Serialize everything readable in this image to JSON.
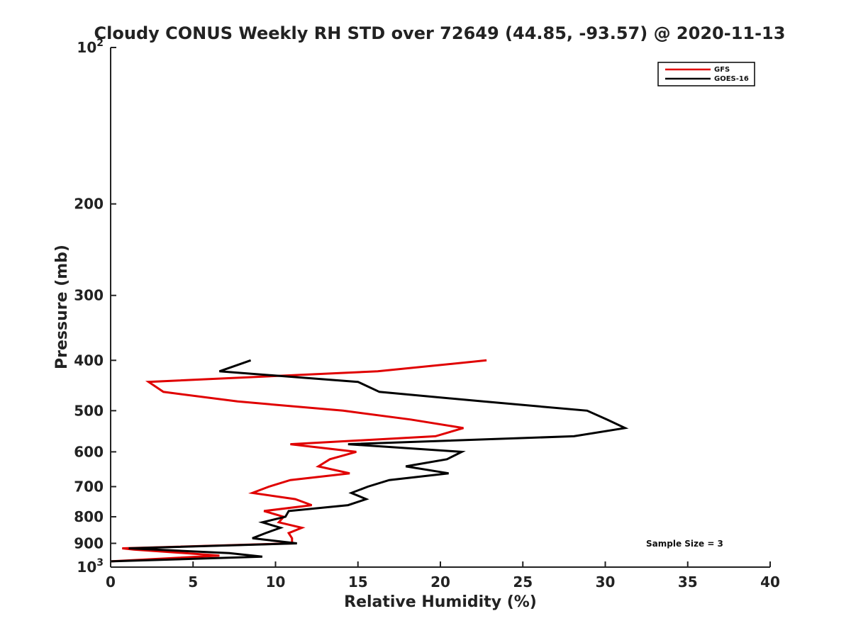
{
  "chart_data": {
    "type": "line",
    "title": "Cloudy CONUS Weekly RH STD over 72649 (44.85, -93.57) @ 2020-11-13",
    "xlabel": "Relative Humidity (%)",
    "ylabel": "Pressure (mb)",
    "xlim": [
      0,
      40
    ],
    "ylim": [
      100,
      1000
    ],
    "y_scale": "log",
    "y_reversed": true,
    "x_ticks": [
      "0",
      "5",
      "10",
      "15",
      "20",
      "25",
      "30",
      "35",
      "40"
    ],
    "y_ticks": [
      {
        "value": 100,
        "base": "10",
        "exp": "2"
      },
      {
        "value": 200,
        "label": "200"
      },
      {
        "value": 300,
        "label": "300"
      },
      {
        "value": 400,
        "label": "400"
      },
      {
        "value": 500,
        "label": "500"
      },
      {
        "value": 600,
        "label": "600"
      },
      {
        "value": 700,
        "label": "700"
      },
      {
        "value": 800,
        "label": "800"
      },
      {
        "value": 900,
        "label": "900"
      },
      {
        "value": 1000,
        "base": "10",
        "exp": "3"
      }
    ],
    "grid": false,
    "legend_position": "top-right",
    "series": [
      {
        "name": "GFS",
        "color": "#e00000",
        "points": [
          [
            22.8,
            400
          ],
          [
            16.2,
            420
          ],
          [
            2.3,
            440
          ],
          [
            3.2,
            460
          ],
          [
            7.7,
            480
          ],
          [
            14.1,
            500
          ],
          [
            18.2,
            520
          ],
          [
            21.4,
            540
          ],
          [
            19.7,
            560
          ],
          [
            10.9,
            580
          ],
          [
            14.9,
            600
          ],
          [
            13.3,
            620
          ],
          [
            12.6,
            640
          ],
          [
            14.5,
            660
          ],
          [
            10.9,
            680
          ],
          [
            9.6,
            700
          ],
          [
            8.6,
            720
          ],
          [
            11.2,
            740
          ],
          [
            12.2,
            760
          ],
          [
            9.3,
            780
          ],
          [
            10.5,
            800
          ],
          [
            10.2,
            820
          ],
          [
            11.6,
            840
          ],
          [
            10.8,
            860
          ],
          [
            11.0,
            880
          ],
          [
            11.0,
            900
          ],
          [
            0.7,
            920
          ],
          [
            1.4,
            925
          ],
          [
            6.6,
            950
          ],
          [
            0.0,
            975
          ]
        ]
      },
      {
        "name": "GOES-16",
        "color": "#000000",
        "points": [
          [
            8.5,
            400
          ],
          [
            6.6,
            420
          ],
          [
            15.0,
            440
          ],
          [
            16.3,
            460
          ],
          [
            22.6,
            480
          ],
          [
            28.9,
            500
          ],
          [
            30.1,
            520
          ],
          [
            31.2,
            540
          ],
          [
            28.1,
            560
          ],
          [
            14.4,
            580
          ],
          [
            21.3,
            600
          ],
          [
            20.4,
            620
          ],
          [
            17.9,
            640
          ],
          [
            20.5,
            660
          ],
          [
            16.9,
            680
          ],
          [
            15.6,
            700
          ],
          [
            14.6,
            720
          ],
          [
            15.5,
            740
          ],
          [
            14.4,
            760
          ],
          [
            10.8,
            780
          ],
          [
            10.6,
            800
          ],
          [
            9.2,
            820
          ],
          [
            10.3,
            840
          ],
          [
            9.4,
            860
          ],
          [
            8.6,
            880
          ],
          [
            11.3,
            900
          ],
          [
            1.1,
            920
          ],
          [
            7.2,
            940
          ],
          [
            9.2,
            955
          ],
          [
            0.0,
            975
          ]
        ]
      }
    ],
    "annotation": "Sample Size = 3"
  }
}
